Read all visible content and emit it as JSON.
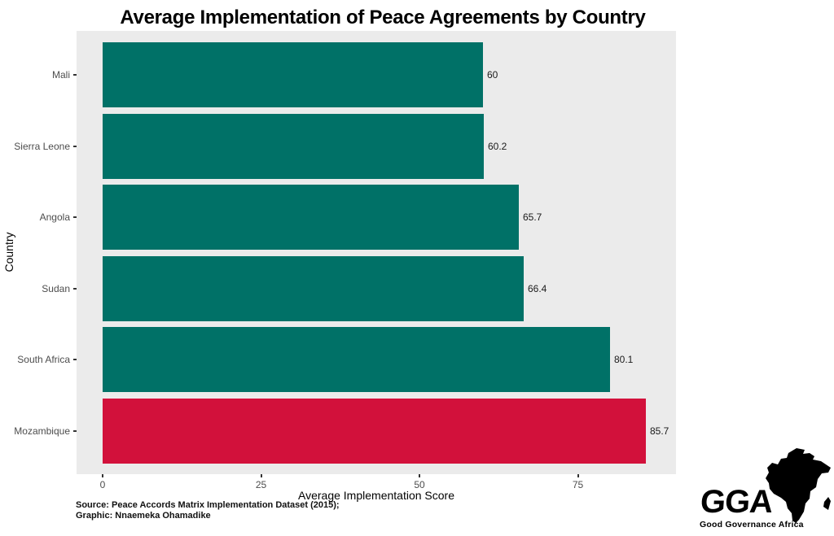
{
  "page": {
    "background": "#FFFFFF"
  },
  "chart_data": {
    "type": "bar",
    "orientation": "horizontal",
    "title": "Average Implementation of Peace Agreements by Country",
    "xlabel": "Average Implementation Score",
    "ylabel": "Country",
    "categories": [
      "Mali",
      "Sierra Leone",
      "Angola",
      "Sudan",
      "South Africa",
      "Mozambique"
    ],
    "values": [
      60,
      60.2,
      65.7,
      66.4,
      80.1,
      85.7
    ],
    "value_labels": [
      "60",
      "60.2",
      "65.7",
      "66.4",
      "80.1",
      "85.7"
    ],
    "highlight_category": "Mozambique",
    "bar_color_default": "#007167",
    "bar_color_highlight": "#D2113B",
    "x_ticks": [
      0,
      25,
      50,
      75
    ],
    "x_tick_labels": [
      "0",
      "25",
      "50",
      "75"
    ],
    "xlim": [
      0,
      90.5
    ],
    "panel_background": "#EBEBEB",
    "grid": false,
    "legend": "none"
  },
  "annotation": {
    "stray_marker_color": "#EE1212",
    "stray_marker_note": "small red dot inside Angola bar near its left side"
  },
  "footer": {
    "source_line1": "Source: Peace Accords Matrix Implementation Dataset (2015);",
    "source_line2": "Graphic: Nnaemeka Ohamadike"
  },
  "logo": {
    "acronym": "GGA",
    "name": "Good Governance Africa",
    "color": "#000000"
  },
  "axis_style": {
    "tick_color": "#333333",
    "tick_label_color": "#4D4D4D",
    "axis_title_color": "#000000"
  }
}
